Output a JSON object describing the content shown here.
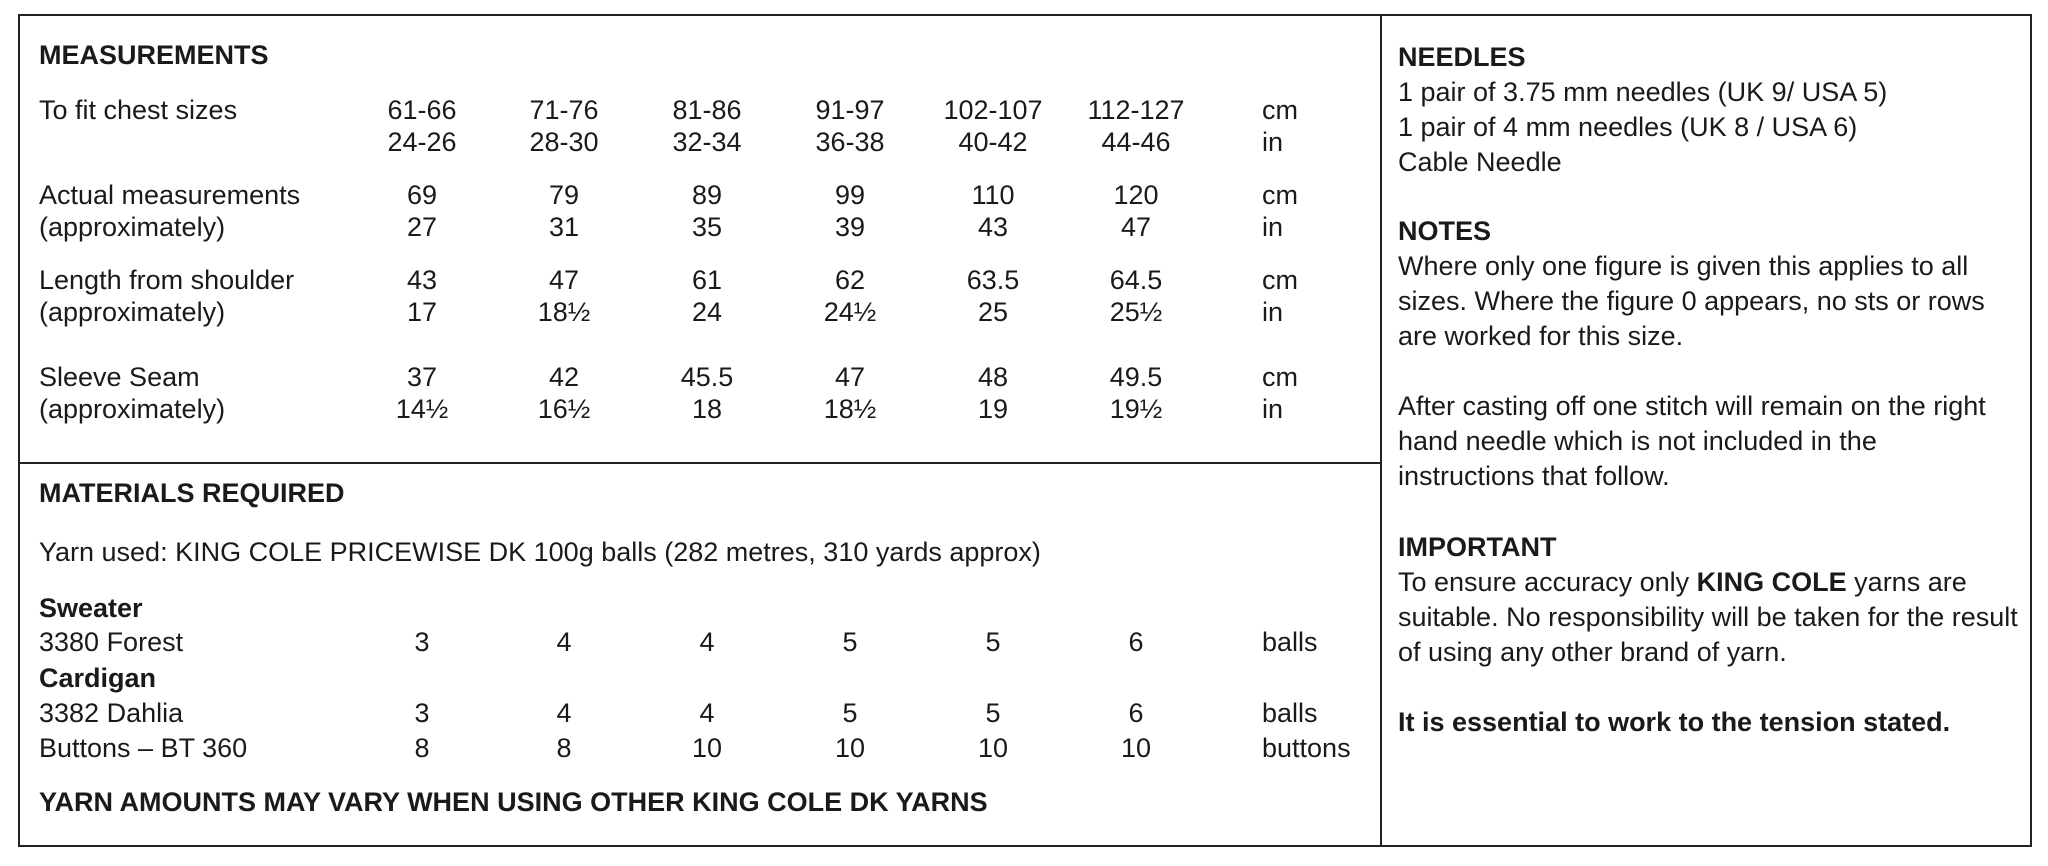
{
  "measurements": {
    "heading": "MEASUREMENTS",
    "rows": [
      {
        "label": [
          "To fit chest sizes",
          ""
        ],
        "values": [
          [
            "61-66",
            "24-26"
          ],
          [
            "71-76",
            "28-30"
          ],
          [
            "81-86",
            "32-34"
          ],
          [
            "91-97",
            "36-38"
          ],
          [
            "102-107",
            "40-42"
          ],
          [
            "112-127",
            "44-46"
          ]
        ],
        "units": [
          "cm",
          "in"
        ]
      },
      {
        "label": [
          "Actual measurements",
          "(approximately)"
        ],
        "values": [
          [
            "69",
            "27"
          ],
          [
            "79",
            "31"
          ],
          [
            "89",
            "35"
          ],
          [
            "99",
            "39"
          ],
          [
            "110",
            "43"
          ],
          [
            "120",
            "47"
          ]
        ],
        "units": [
          "cm",
          "in"
        ]
      },
      {
        "label": [
          "Length from shoulder",
          "(approximately)"
        ],
        "values": [
          [
            "43",
            "17"
          ],
          [
            "47",
            "18½"
          ],
          [
            "61",
            "24"
          ],
          [
            "62",
            "24½"
          ],
          [
            "63.5",
            "25"
          ],
          [
            "64.5",
            "25½"
          ]
        ],
        "units": [
          "cm",
          "in"
        ]
      },
      {
        "label": [
          "Sleeve Seam",
          "(approximately)"
        ],
        "values": [
          [
            "37",
            "14½"
          ],
          [
            "42",
            "16½"
          ],
          [
            "45.5",
            "18"
          ],
          [
            "47",
            "18½"
          ],
          [
            "48",
            "19"
          ],
          [
            "49.5",
            "19½"
          ]
        ],
        "units": [
          "cm",
          "in"
        ]
      }
    ]
  },
  "materials": {
    "heading": "MATERIALS REQUIRED",
    "yarn_used": "Yarn used: KING COLE PRICEWISE DK 100g balls (282 metres, 310 yards approx)",
    "sweater_heading": "Sweater",
    "cardigan_heading": "Cardigan",
    "rows": [
      {
        "label": "3380 Forest",
        "values": [
          "3",
          "4",
          "4",
          "5",
          "5",
          "6"
        ],
        "unit": "balls"
      },
      {
        "label": "3382 Dahlia",
        "values": [
          "3",
          "4",
          "4",
          "5",
          "5",
          "6"
        ],
        "unit": "balls"
      },
      {
        "label": "Buttons – BT 360",
        "values": [
          "8",
          "8",
          "10",
          "10",
          "10",
          "10"
        ],
        "unit": "buttons"
      }
    ],
    "footer": "YARN AMOUNTS MAY VARY WHEN USING OTHER KING COLE DK YARNS"
  },
  "needles": {
    "heading": "NEEDLES",
    "lines": [
      "1 pair of 3.75 mm needles (UK 9/ USA 5)",
      "1 pair of 4 mm needles (UK 8 / USA 6)",
      "Cable Needle"
    ]
  },
  "notes": {
    "heading": "NOTES",
    "para1": "Where only one figure is given this applies to all sizes. Where the figure 0 appears, no sts or rows are worked for this size.",
    "para2": "After casting off one stitch will remain on the right hand needle which is not included in the instructions that follow."
  },
  "important": {
    "heading": "IMPORTANT",
    "text_before": "To ensure accuracy only ",
    "brand": "KING COLE",
    "text_after": " yarns are suitable. No responsibility will be taken for the result of using any other brand of yarn.",
    "tension": "It is essential to work to the tension stated."
  }
}
